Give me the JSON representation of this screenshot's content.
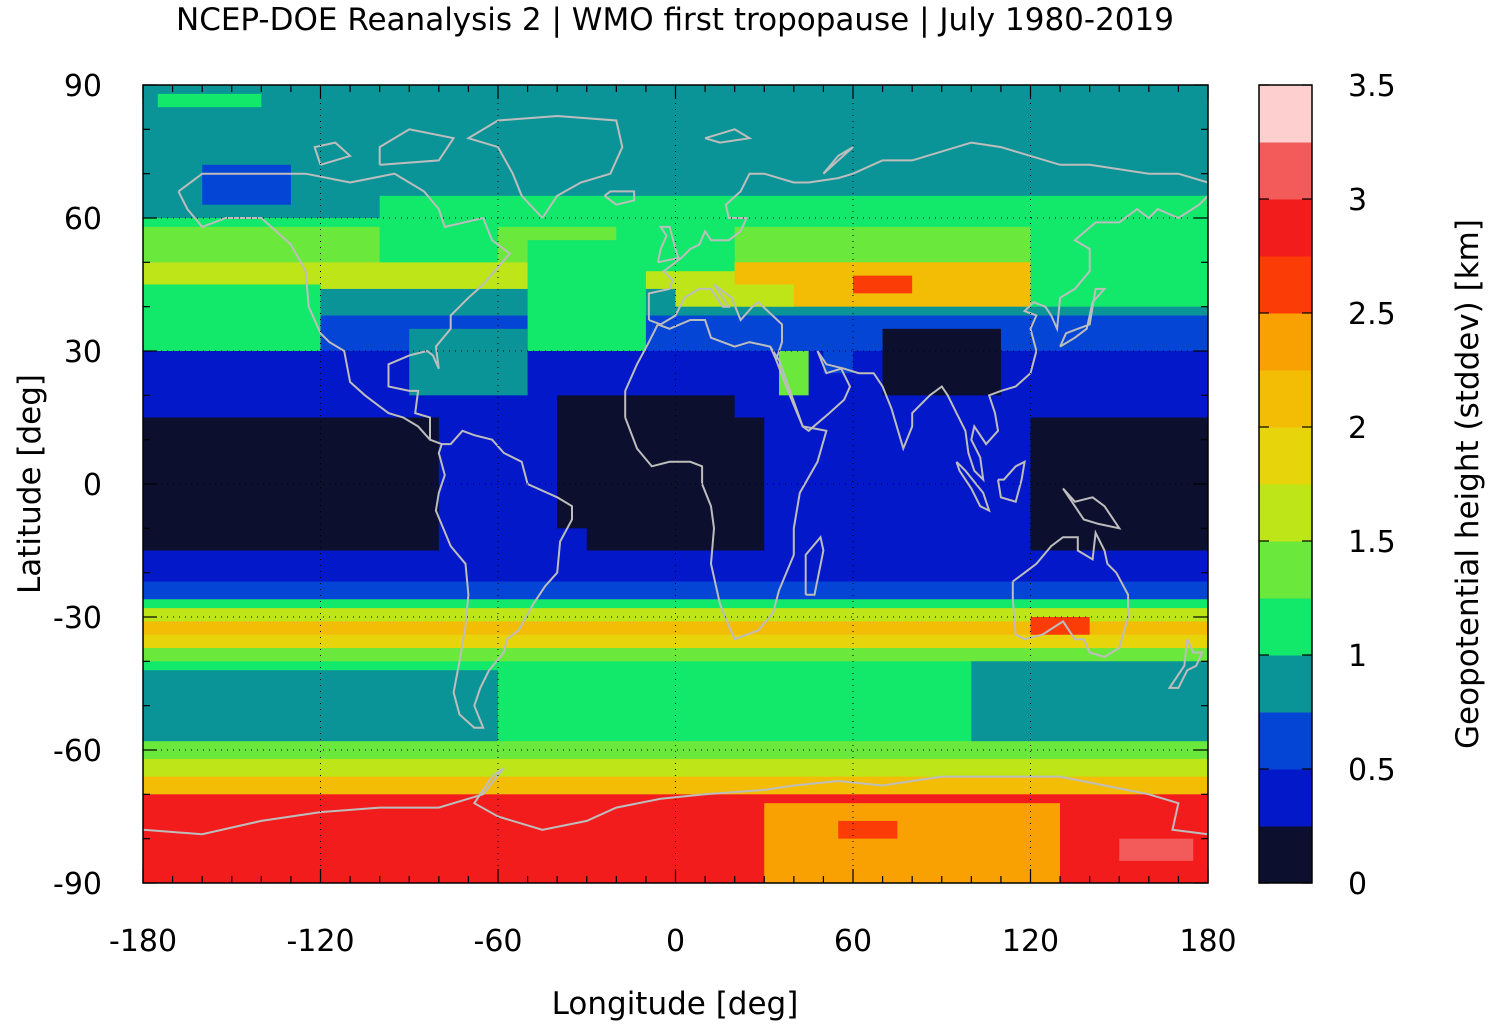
{
  "title": "NCEP-DOE Reanalysis 2 | WMO first tropopause | July 1980-2019",
  "chart_data": {
    "type": "heatmap",
    "projection": "equirectangular world map",
    "title": "NCEP-DOE Reanalysis 2 | WMO first tropopause | July 1980-2019",
    "xlabel": "Longitude [deg]",
    "ylabel": "Latitude [deg]",
    "colorbar_label": "Geopotential height (stddev) [km]",
    "xlim": [
      -180,
      180
    ],
    "ylim": [
      -90,
      90
    ],
    "x_ticks": [
      "-180",
      "-120",
      "-60",
      "0",
      "60",
      "120",
      "180"
    ],
    "y_ticks": [
      "90",
      "60",
      "30",
      "0",
      "-30",
      "-60",
      "-90"
    ],
    "x_tick_values": [
      -180,
      -120,
      -60,
      0,
      60,
      120,
      180
    ],
    "y_tick_values": [
      90,
      60,
      30,
      0,
      -30,
      -60,
      -90
    ],
    "colorbar_ticks": [
      "3.5",
      "3",
      "2.5",
      "2",
      "1.5",
      "1",
      "0.5",
      "0"
    ],
    "colorbar_tick_values": [
      3.5,
      3,
      2.5,
      2,
      1.5,
      1,
      0.5,
      0
    ],
    "colorbar_range": [
      0,
      3.5
    ],
    "colorbar_levels": [
      {
        "from": 0.0,
        "to": 0.25,
        "color": "#0c0f2e"
      },
      {
        "from": 0.25,
        "to": 0.5,
        "color": "#0318c8"
      },
      {
        "from": 0.5,
        "to": 0.75,
        "color": "#0445d6"
      },
      {
        "from": 0.75,
        "to": 1.0,
        "color": "#0b9497"
      },
      {
        "from": 1.0,
        "to": 1.25,
        "color": "#12e86a"
      },
      {
        "from": 1.25,
        "to": 1.5,
        "color": "#6ae83c"
      },
      {
        "from": 1.5,
        "to": 1.75,
        "color": "#bde518"
      },
      {
        "from": 1.75,
        "to": 2.0,
        "color": "#e8d40a"
      },
      {
        "from": 2.0,
        "to": 2.25,
        "color": "#f3bd05"
      },
      {
        "from": 2.25,
        "to": 2.5,
        "color": "#f9a103"
      },
      {
        "from": 2.5,
        "to": 2.75,
        "color": "#fc3c06"
      },
      {
        "from": 2.75,
        "to": 3.0,
        "color": "#f31c1c"
      },
      {
        "from": 3.0,
        "to": 3.25,
        "color": "#f35a5a"
      },
      {
        "from": 3.25,
        "to": 3.5,
        "color": "#fdcfcf"
      }
    ],
    "zonal_profile": [
      {
        "lat_from": 90,
        "lat_to": 65,
        "value": 0.85
      },
      {
        "lat_from": 65,
        "lat_to": 58,
        "value": 1.1
      },
      {
        "lat_from": 58,
        "lat_to": 50,
        "value": 1.3
      },
      {
        "lat_from": 50,
        "lat_to": 44,
        "value": 1.6
      },
      {
        "lat_from": 44,
        "lat_to": 38,
        "value": 0.9
      },
      {
        "lat_from": 38,
        "lat_to": 30,
        "value": 0.6
      },
      {
        "lat_from": 30,
        "lat_to": 15,
        "value": 0.4
      },
      {
        "lat_from": 15,
        "lat_to": -15,
        "value": 0.2
      },
      {
        "lat_from": -15,
        "lat_to": -22,
        "value": 0.3
      },
      {
        "lat_from": -22,
        "lat_to": -26,
        "value": 0.6
      },
      {
        "lat_from": -26,
        "lat_to": -28,
        "value": 1.2
      },
      {
        "lat_from": -28,
        "lat_to": -31,
        "value": 1.6
      },
      {
        "lat_from": -31,
        "lat_to": -34,
        "value": 2.1
      },
      {
        "lat_from": -34,
        "lat_to": -37,
        "value": 1.8
      },
      {
        "lat_from": -37,
        "lat_to": -40,
        "value": 1.4
      },
      {
        "lat_from": -40,
        "lat_to": -58,
        "value": 1.1
      },
      {
        "lat_from": -58,
        "lat_to": -62,
        "value": 1.3
      },
      {
        "lat_from": -62,
        "lat_to": -66,
        "value": 1.6
      },
      {
        "lat_from": -66,
        "lat_to": -70,
        "value": 2.1
      },
      {
        "lat_from": -70,
        "lat_to": -90,
        "value": 2.8
      }
    ],
    "regional_features": [
      {
        "lon": [
          -180,
          -100
        ],
        "lat": [
          80,
          60
        ],
        "value": 0.85
      },
      {
        "lon": [
          -175,
          -140
        ],
        "lat": [
          88,
          85
        ],
        "value": 1.1
      },
      {
        "lon": [
          -160,
          -130
        ],
        "lat": [
          72,
          63
        ],
        "value": 0.6
      },
      {
        "lon": [
          -180,
          -120
        ],
        "lat": [
          45,
          30
        ],
        "value": 1.1
      },
      {
        "lon": [
          -100,
          -60
        ],
        "lat": [
          60,
          50
        ],
        "value": 1.1
      },
      {
        "lon": [
          -50,
          -10
        ],
        "lat": [
          55,
          30
        ],
        "value": 1.1
      },
      {
        "lon": [
          -20,
          20
        ],
        "lat": [
          62,
          48
        ],
        "value": 1.1
      },
      {
        "lon": [
          20,
          120
        ],
        "lat": [
          50,
          40
        ],
        "value": 2.1
      },
      {
        "lon": [
          0,
          40
        ],
        "lat": [
          45,
          40
        ],
        "value": 1.6
      },
      {
        "lon": [
          60,
          80
        ],
        "lat": [
          47,
          43
        ],
        "value": 2.6
      },
      {
        "lon": [
          120,
          180
        ],
        "lat": [
          60,
          40
        ],
        "value": 1.1
      },
      {
        "lon": [
          70,
          110
        ],
        "lat": [
          35,
          20
        ],
        "value": 0.2
      },
      {
        "lon": [
          -90,
          -50
        ],
        "lat": [
          35,
          20
        ],
        "value": 0.85
      },
      {
        "lon": [
          35,
          45
        ],
        "lat": [
          30,
          20
        ],
        "value": 1.3
      },
      {
        "lon": [
          50,
          60
        ],
        "lat": [
          35,
          25
        ],
        "value": 0.6
      },
      {
        "lon": [
          40,
          90
        ],
        "lat": [
          10,
          -5
        ],
        "value": 0.6
      },
      {
        "lon": [
          -80,
          -30
        ],
        "lat": [
          15,
          -15
        ],
        "value": 0.4
      },
      {
        "lon": [
          -40,
          20
        ],
        "lat": [
          20,
          -10
        ],
        "value": 0.2
      },
      {
        "lon": [
          30,
          120
        ],
        "lat": [
          15,
          -15
        ],
        "value": 0.4
      },
      {
        "lon": [
          120,
          140
        ],
        "lat": [
          -30,
          -34
        ],
        "value": 2.6
      },
      {
        "lon": [
          100,
          180
        ],
        "lat": [
          -40,
          -58
        ],
        "value": 0.85
      },
      {
        "lon": [
          -180,
          -60
        ],
        "lat": [
          -42,
          -58
        ],
        "value": 0.85
      },
      {
        "lon": [
          30,
          130
        ],
        "lat": [
          -72,
          -90
        ],
        "value": 2.3
      },
      {
        "lon": [
          55,
          75
        ],
        "lat": [
          -76,
          -80
        ],
        "value": 2.6
      },
      {
        "lon": [
          130,
          180
        ],
        "lat": [
          -72,
          -90
        ],
        "value": 2.9
      },
      {
        "lon": [
          150,
          175
        ],
        "lat": [
          -80,
          -85
        ],
        "value": 3.1
      }
    ],
    "coastline_color": "#bdbdbd",
    "grid": true
  }
}
